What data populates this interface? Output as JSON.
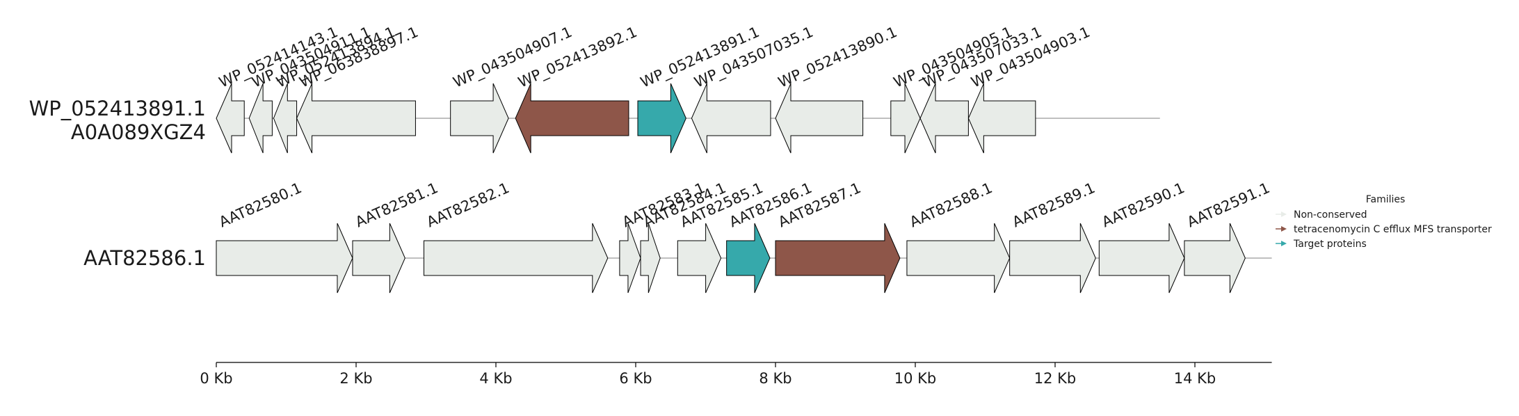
{
  "colors": {
    "non_conserved": "#e8ece8",
    "efflux": "#8e5649",
    "target": "#36a9ab",
    "stroke": "#000000",
    "backbone": "#7f7f7f"
  },
  "legend": {
    "title": "Families",
    "items": [
      {
        "label": "Non-conserved",
        "family": "non_conserved"
      },
      {
        "label": "tetracenomycin C efflux MFS transporter",
        "family": "efflux"
      },
      {
        "label": "Target proteins",
        "family": "target"
      }
    ]
  },
  "axis": {
    "unit": "Kb",
    "min_kb": 0,
    "max_kb": 15.1,
    "ticks": [
      {
        "value": 0,
        "label": "0 Kb"
      },
      {
        "value": 2,
        "label": "2 Kb"
      },
      {
        "value": 4,
        "label": "4 Kb"
      },
      {
        "value": 6,
        "label": "6 Kb"
      },
      {
        "value": 8,
        "label": "8 Kb"
      },
      {
        "value": 10,
        "label": "10 Kb"
      },
      {
        "value": 12,
        "label": "12 Kb"
      },
      {
        "value": 14,
        "label": "14 Kb"
      }
    ]
  },
  "tracks": [
    {
      "label_lines": [
        "WP_052413891.1",
        "A0A089XGZ4"
      ],
      "locus_end_kb": 13.5,
      "genes": [
        {
          "name": "WP_052414143.1",
          "start": 0.0,
          "end": 0.4,
          "strand": -1,
          "family": "non_conserved"
        },
        {
          "name": "WP_043504911.1",
          "start": 0.47,
          "end": 0.8,
          "strand": -1,
          "family": "non_conserved"
        },
        {
          "name": "WP_052413894.1",
          "start": 0.82,
          "end": 1.15,
          "strand": -1,
          "family": "non_conserved"
        },
        {
          "name": "WP_063838897.1",
          "start": 1.15,
          "end": 2.85,
          "strand": -1,
          "family": "non_conserved"
        },
        {
          "name": "WP_043504907.1",
          "start": 3.35,
          "end": 4.18,
          "strand": 1,
          "family": "non_conserved"
        },
        {
          "name": "WP_052413892.1",
          "start": 4.28,
          "end": 5.9,
          "strand": -1,
          "family": "efflux"
        },
        {
          "name": "WP_052413891.1",
          "start": 6.03,
          "end": 6.72,
          "strand": 1,
          "family": "target"
        },
        {
          "name": "WP_043507035.1",
          "start": 6.8,
          "end": 7.93,
          "strand": -1,
          "family": "non_conserved"
        },
        {
          "name": "WP_052413890.1",
          "start": 8.0,
          "end": 9.25,
          "strand": -1,
          "family": "non_conserved"
        },
        {
          "name": "WP_043504905.1",
          "start": 9.65,
          "end": 10.07,
          "strand": 1,
          "family": "non_conserved"
        },
        {
          "name": "WP_043507033.1",
          "start": 10.07,
          "end": 10.76,
          "strand": -1,
          "family": "non_conserved"
        },
        {
          "name": "WP_043504903.1",
          "start": 10.76,
          "end": 11.72,
          "strand": -1,
          "family": "non_conserved"
        }
      ]
    },
    {
      "label_lines": [
        "AAT82586.1"
      ],
      "locus_end_kb": 15.1,
      "genes": [
        {
          "name": "AAT82580.1",
          "start": 0.0,
          "end": 1.95,
          "strand": 1,
          "family": "non_conserved"
        },
        {
          "name": "AAT82581.1",
          "start": 1.95,
          "end": 2.7,
          "strand": 1,
          "family": "non_conserved"
        },
        {
          "name": "AAT82582.1",
          "start": 2.97,
          "end": 5.6,
          "strand": 1,
          "family": "non_conserved"
        },
        {
          "name": "AAT82583.1",
          "start": 5.77,
          "end": 6.07,
          "strand": 1,
          "family": "non_conserved"
        },
        {
          "name": "AAT82584.1",
          "start": 6.07,
          "end": 6.35,
          "strand": 1,
          "family": "non_conserved"
        },
        {
          "name": "AAT82585.1",
          "start": 6.6,
          "end": 7.22,
          "strand": 1,
          "family": "non_conserved"
        },
        {
          "name": "AAT82586.1",
          "start": 7.3,
          "end": 7.92,
          "strand": 1,
          "family": "target"
        },
        {
          "name": "AAT82587.1",
          "start": 8.0,
          "end": 9.78,
          "strand": 1,
          "family": "efflux"
        },
        {
          "name": "AAT82588.1",
          "start": 9.88,
          "end": 11.35,
          "strand": 1,
          "family": "non_conserved"
        },
        {
          "name": "AAT82589.1",
          "start": 11.35,
          "end": 12.58,
          "strand": 1,
          "family": "non_conserved"
        },
        {
          "name": "AAT82590.1",
          "start": 12.63,
          "end": 13.85,
          "strand": 1,
          "family": "non_conserved"
        },
        {
          "name": "AAT82591.1",
          "start": 13.85,
          "end": 14.72,
          "strand": 1,
          "family": "non_conserved"
        }
      ]
    }
  ]
}
